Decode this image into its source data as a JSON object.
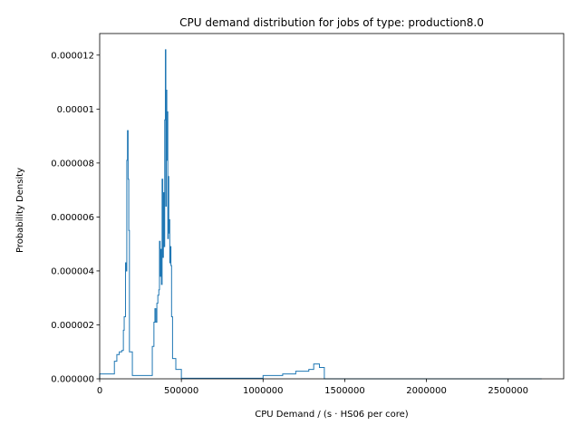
{
  "chart_data": {
    "type": "line",
    "style": "step-histogram",
    "title": "CPU demand distribution for jobs of type: production8.0",
    "xlabel": "CPU Demand / (s · HS06 per core)",
    "ylabel": "Probability Density",
    "xlim": [
      0,
      2840000
    ],
    "ylim": [
      0,
      1.28e-05
    ],
    "xticks": [
      0,
      500000,
      1000000,
      1500000,
      2000000,
      2500000
    ],
    "xtick_labels": [
      "0",
      "500000",
      "1000000",
      "1500000",
      "2000000",
      "2500000"
    ],
    "yticks": [
      0,
      2e-06,
      4e-06,
      6e-06,
      8e-06,
      1e-05,
      1.2e-05
    ],
    "ytick_labels": [
      "0.000000",
      "0.000002",
      "0.000004",
      "0.000006",
      "0.000008",
      "0.00001",
      "0.000012"
    ],
    "grid": false,
    "line_color": "#1f77b4",
    "bins": [
      [
        0,
        1.8e-07
      ],
      [
        90000,
        6.5e-07
      ],
      [
        105000,
        9e-07
      ],
      [
        120000,
        1e-06
      ],
      [
        135000,
        1.05e-06
      ],
      [
        145000,
        1.8e-06
      ],
      [
        150000,
        2.3e-06
      ],
      [
        158000,
        4.3e-06
      ],
      [
        162000,
        4e-06
      ],
      [
        166000,
        8.1e-06
      ],
      [
        170000,
        9.2e-06
      ],
      [
        174000,
        7.4e-06
      ],
      [
        178000,
        5.5e-06
      ],
      [
        182000,
        1e-06
      ],
      [
        200000,
        1.2e-07
      ],
      [
        322000,
        1.2e-06
      ],
      [
        332000,
        2.1e-06
      ],
      [
        338000,
        2.6e-06
      ],
      [
        344000,
        2.1e-06
      ],
      [
        350000,
        2.8e-06
      ],
      [
        356000,
        3.1e-06
      ],
      [
        362000,
        3.3e-06
      ],
      [
        366000,
        5.1e-06
      ],
      [
        370000,
        3.8e-06
      ],
      [
        374000,
        4.8e-06
      ],
      [
        378000,
        3.5e-06
      ],
      [
        382000,
        7.4e-06
      ],
      [
        386000,
        4.5e-06
      ],
      [
        390000,
        6.9e-06
      ],
      [
        394000,
        4.9e-06
      ],
      [
        398000,
        9.6e-06
      ],
      [
        402000,
        1.22e-05
      ],
      [
        405000,
        6.4e-06
      ],
      [
        408000,
        1.07e-05
      ],
      [
        411000,
        8.1e-06
      ],
      [
        414000,
        9.9e-06
      ],
      [
        417000,
        5.2e-06
      ],
      [
        420000,
        7.5e-06
      ],
      [
        423000,
        5.4e-06
      ],
      [
        426000,
        5.9e-06
      ],
      [
        429000,
        4.3e-06
      ],
      [
        432000,
        4.9e-06
      ],
      [
        436000,
        4.2e-06
      ],
      [
        440000,
        2.3e-06
      ],
      [
        446000,
        7.5e-07
      ],
      [
        466000,
        3.5e-07
      ],
      [
        500000,
        2e-08
      ],
      [
        1000000,
        1.2e-07
      ],
      [
        1120000,
        1.8e-07
      ],
      [
        1200000,
        2.8e-07
      ],
      [
        1280000,
        3.5e-07
      ],
      [
        1310000,
        5.5e-07
      ],
      [
        1345000,
        4.2e-07
      ],
      [
        1375000,
        0.0
      ],
      [
        2700000,
        0.0
      ]
    ]
  }
}
